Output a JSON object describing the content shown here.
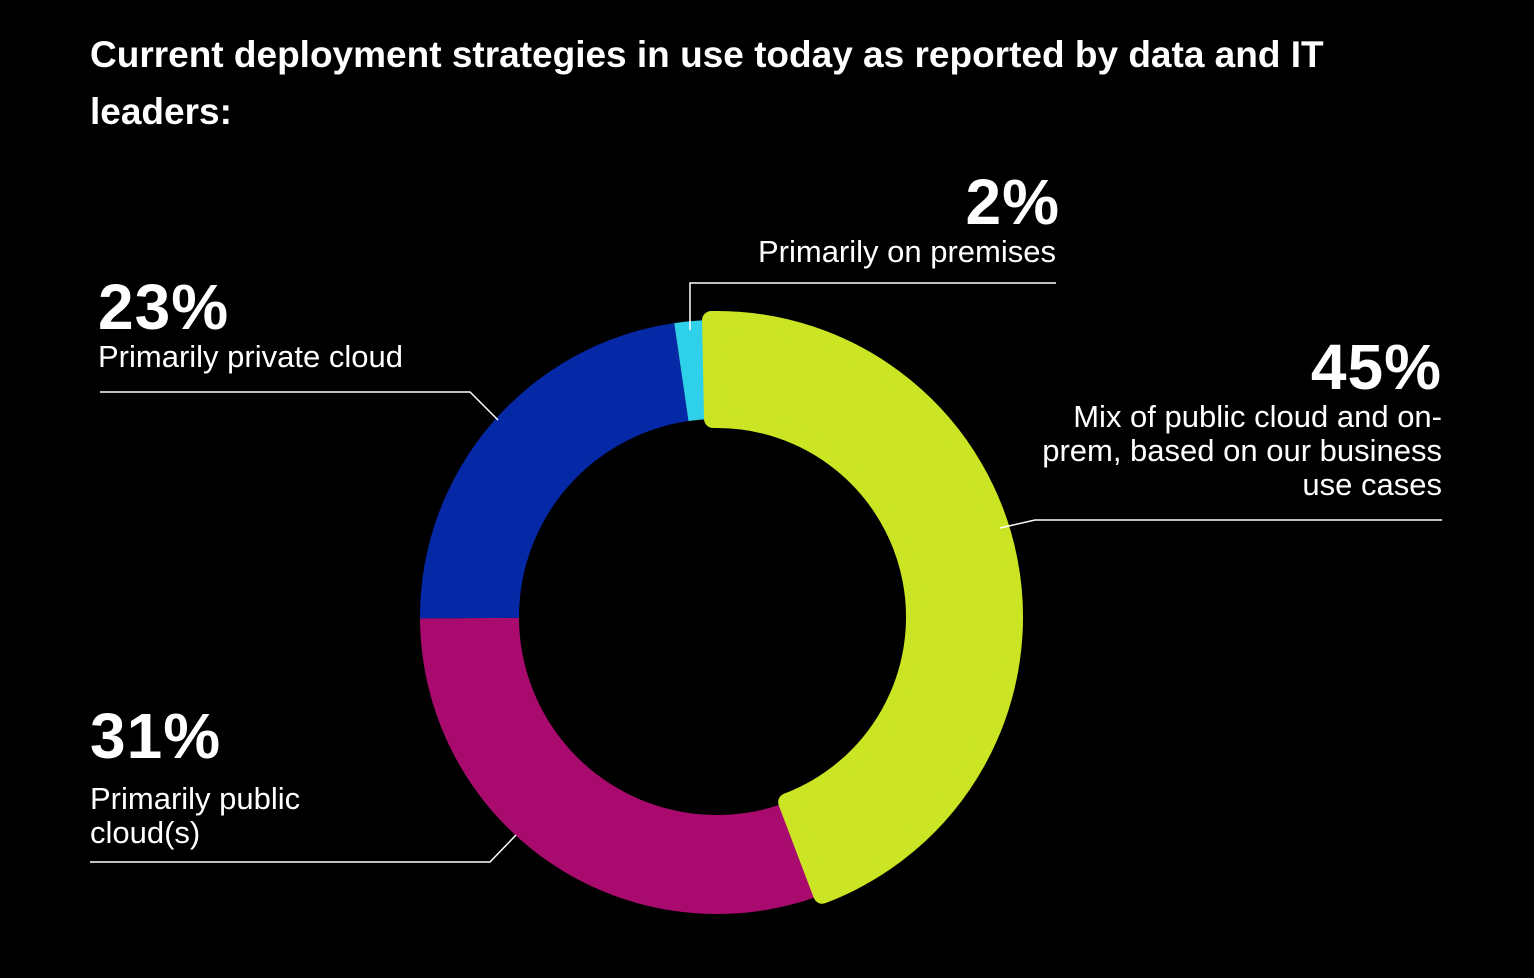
{
  "title": "Current deployment strategies in use today as reported by data and IT leaders:",
  "chart_data": {
    "type": "pie",
    "title": "Current deployment strategies in use today as reported by data and IT leaders:",
    "categories": [
      "Mix of public cloud and on-prem, based on our business use cases",
      "Primarily public cloud(s)",
      "Primarily private cloud",
      "Primarily on premises"
    ],
    "values": [
      45,
      31,
      23,
      2
    ],
    "value_labels": [
      "45%",
      "31%",
      "23%",
      "2%"
    ],
    "colors": [
      "#cbe524",
      "#a80a6e",
      "#0528a6",
      "#2fd1ea"
    ],
    "legend": "none"
  },
  "labels": {
    "mix_pct": "45%",
    "mix_text": "Mix of public cloud and on-prem, based on our business use cases",
    "public_pct": "31%",
    "public_text": "Primarily public cloud(s)",
    "private_pct": "23%",
    "private_text": "Primarily private cloud",
    "premises_pct": "2%",
    "premises_text": "Primarily on premises"
  }
}
